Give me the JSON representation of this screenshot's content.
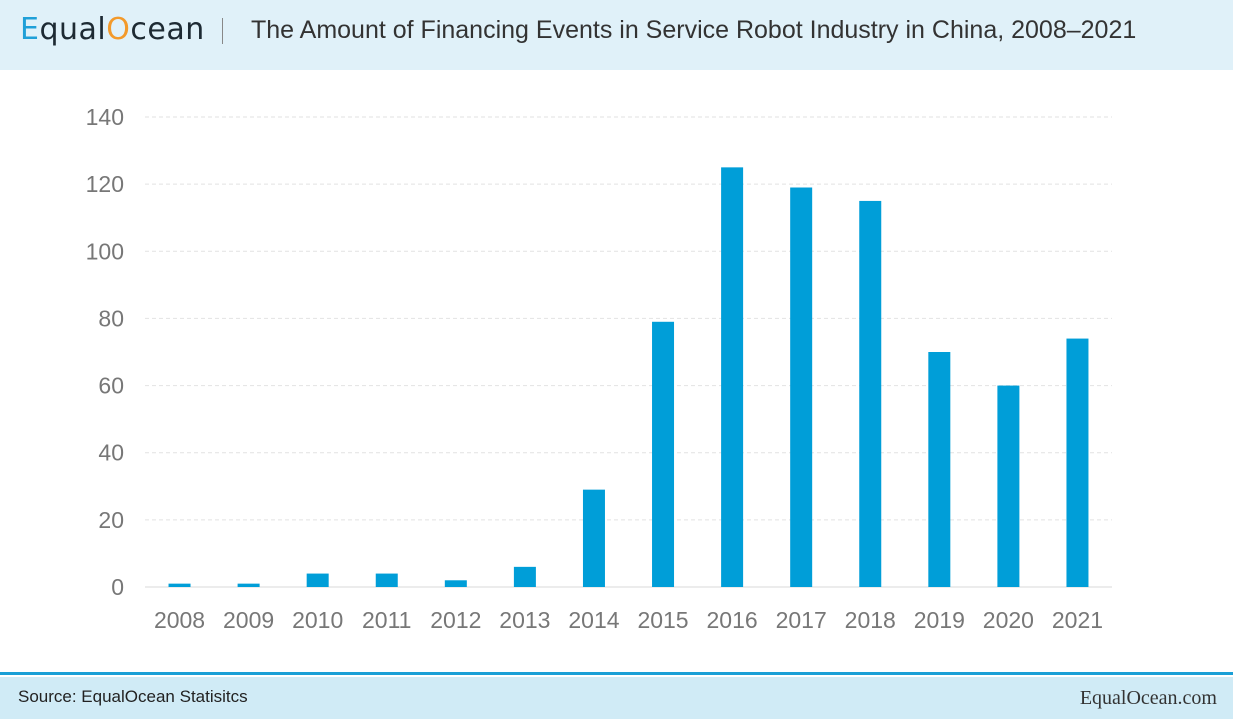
{
  "header": {
    "logo_text": "EqualOcean",
    "title": "The Amount of Financing Events in Service Robot Industry in China, 2008–2021"
  },
  "footer": {
    "source": "Source: EqualOcean Statisitcs",
    "brand": "EqualOcean.com"
  },
  "colors": {
    "bar": "#009ed8",
    "header_bg": "#e0f1f9",
    "footer_bg": "#d0ebf6",
    "accent": "#1a9fd6"
  },
  "chart_data": {
    "type": "bar",
    "title": "The Amount of Financing Events in Service Robot Industry in China, 2008–2021",
    "xlabel": "",
    "ylabel": "",
    "categories": [
      "2008",
      "2009",
      "2010",
      "2011",
      "2012",
      "2013",
      "2014",
      "2015",
      "2016",
      "2017",
      "2018",
      "2019",
      "2020",
      "2021"
    ],
    "values": [
      1,
      1,
      4,
      4,
      2,
      6,
      29,
      79,
      125,
      119,
      115,
      70,
      60,
      74
    ],
    "ylim": [
      0,
      140
    ],
    "yticks": [
      0,
      20,
      40,
      60,
      80,
      100,
      120,
      140
    ],
    "grid": true,
    "legend": "none"
  }
}
